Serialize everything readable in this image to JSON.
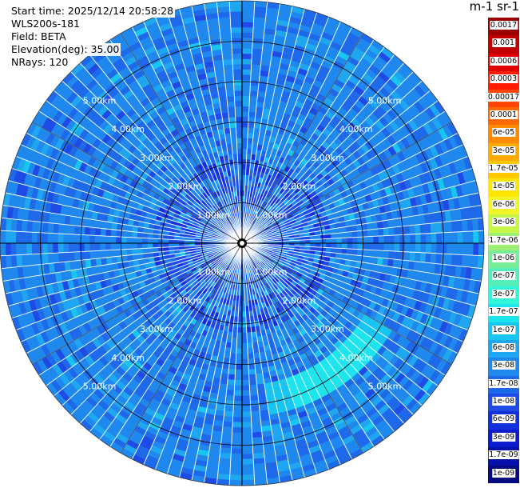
{
  "info": {
    "start_time": "Start time: 2025/12/14 20:58:28",
    "instrument": "WLS200s-181",
    "field": "Field: BETA",
    "elevation": "Elevation(deg): 35.00",
    "nrays": "NRays: 120"
  },
  "colorbar": {
    "unit": "m-1 sr-1",
    "levels": [
      "0.0017",
      "0.001",
      "0.0006",
      "0.0003",
      "0.00017",
      "0.0001",
      "6e-05",
      "3e-05",
      "1.7e-05",
      "1e-05",
      "6e-06",
      "3e-06",
      "1.7e-06",
      "1e-06",
      "6e-07",
      "3e-07",
      "1.7e-07",
      "1e-07",
      "6e-08",
      "3e-08",
      "1.7e-08",
      "1e-08",
      "6e-09",
      "3e-09",
      "1.7e-09",
      "1e-09"
    ],
    "colors": [
      "#9b0000",
      "#c00000",
      "#e00000",
      "#ff1a00",
      "#ff4500",
      "#ff6a00",
      "#ff8c00",
      "#ffaa00",
      "#ffc800",
      "#ffe600",
      "#f2f52a",
      "#c8f54a",
      "#9ef075",
      "#78ec96",
      "#55f0b9",
      "#33f5d8",
      "#1ee4ee",
      "#18c4f0",
      "#1ea6f0",
      "#1e88ee",
      "#1e69ea",
      "#1e4ae6",
      "#1430dc",
      "#0c1ccc",
      "#0610a8",
      "#050a80"
    ]
  },
  "chart_data": {
    "type": "heatmap",
    "projection": "polar",
    "field": "BETA",
    "elevation_deg": 35.0,
    "n_rays": 120,
    "range_unit": "km",
    "range_max_km": 6.0,
    "range_rings_km": [
      1.0,
      2.0,
      3.0,
      4.0,
      5.0
    ],
    "ring_labels": [
      "1.00km",
      "2.00km",
      "3.00km",
      "4.00km",
      "5.00km"
    ],
    "colorbar_unit": "m-1 sr-1",
    "dominant_level": "3e-08",
    "features": [
      {
        "type": "enhanced-backscatter-arc",
        "level": "1.7e-07",
        "azimuth_deg": [
          120,
          170
        ],
        "range_km": [
          3.5,
          4.3
        ]
      }
    ]
  }
}
